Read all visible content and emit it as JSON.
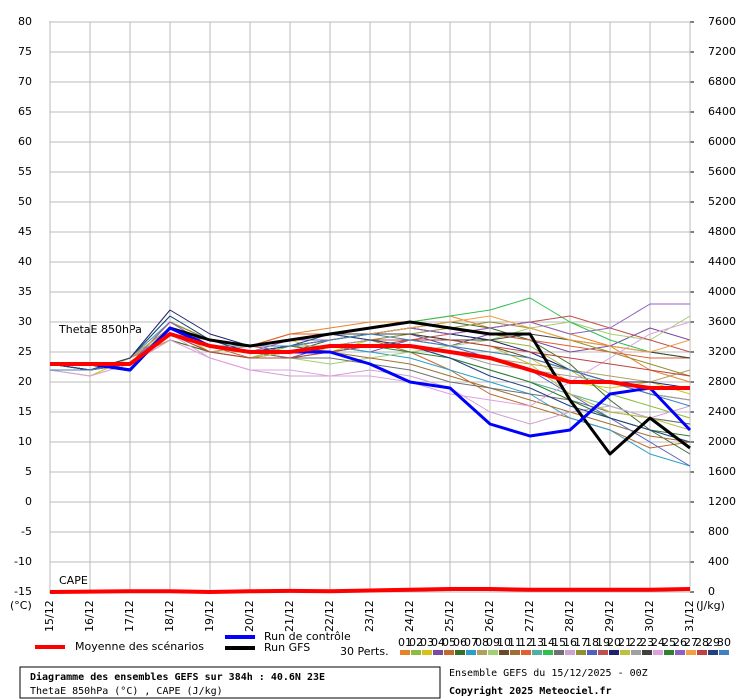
{
  "chart_data": {
    "type": "line",
    "categories": [
      "15/12",
      "16/12",
      "17/12",
      "18/12",
      "19/12",
      "20/12",
      "21/12",
      "22/12",
      "23/12",
      "24/12",
      "25/12",
      "26/12",
      "27/12",
      "28/12",
      "29/12",
      "30/12",
      "31/12"
    ],
    "ylim": [
      -15,
      80
    ],
    "yticks": [
      -15,
      -10,
      -5,
      0,
      5,
      10,
      15,
      20,
      25,
      30,
      35,
      40,
      45,
      50,
      55,
      60,
      65,
      70,
      75,
      80
    ],
    "y2lim": [
      0,
      7600
    ],
    "y2ticks": [
      0,
      400,
      800,
      1200,
      1600,
      2000,
      2400,
      2800,
      3200,
      3600,
      4000,
      4400,
      4800,
      5200,
      5600,
      6000,
      6400,
      6800,
      7200,
      7600
    ],
    "ylabel": "(°C)",
    "y2label": "(J/kg)",
    "annotations": [
      "ThetaE 850hPa",
      "CAPE"
    ],
    "grid": true,
    "perturbations_label": "30 Perts.",
    "series": [
      {
        "name": "01",
        "color": "#e8822a",
        "values": [
          23,
          22,
          24,
          27,
          25,
          26,
          28,
          29,
          30,
          30,
          31,
          29,
          30,
          28,
          26,
          22,
          20
        ]
      },
      {
        "name": "02",
        "color": "#8fbc3c",
        "values": [
          23,
          22,
          23,
          29,
          25,
          24,
          26,
          27,
          28,
          29,
          28,
          27,
          26,
          22,
          18,
          16,
          14
        ]
      },
      {
        "name": "03",
        "color": "#d4c21a",
        "values": [
          22,
          21,
          24,
          30,
          27,
          26,
          27,
          25,
          27,
          28,
          26,
          25,
          24,
          20,
          19,
          20,
          18
        ]
      },
      {
        "name": "04",
        "color": "#7a4aa0",
        "values": [
          23,
          22,
          23,
          28,
          26,
          25,
          24,
          26,
          25,
          27,
          26,
          28,
          27,
          25,
          26,
          29,
          27
        ]
      },
      {
        "name": "05",
        "color": "#c26a2e",
        "values": [
          22,
          22,
          24,
          29,
          26,
          24,
          25,
          26,
          27,
          25,
          22,
          18,
          16,
          14,
          12,
          9,
          10
        ]
      },
      {
        "name": "06",
        "color": "#3a6e2a",
        "values": [
          23,
          22,
          23,
          27,
          25,
          24,
          25,
          27,
          28,
          29,
          30,
          29,
          27,
          23,
          17,
          12,
          8
        ]
      },
      {
        "name": "07",
        "color": "#2aa0c8",
        "values": [
          22,
          22,
          24,
          30,
          26,
          25,
          26,
          26,
          25,
          24,
          22,
          20,
          18,
          14,
          12,
          8,
          6
        ]
      },
      {
        "name": "08",
        "color": "#b0a060",
        "values": [
          23,
          22,
          23,
          28,
          25,
          26,
          27,
          28,
          27,
          26,
          25,
          24,
          23,
          22,
          21,
          20,
          22
        ]
      },
      {
        "name": "09",
        "color": "#a0d070",
        "values": [
          22,
          21,
          23,
          29,
          26,
          25,
          24,
          23,
          24,
          25,
          26,
          27,
          29,
          30,
          28,
          27,
          31
        ]
      },
      {
        "name": "10",
        "color": "#6a4a2a",
        "values": [
          23,
          22,
          24,
          28,
          27,
          26,
          27,
          27,
          28,
          28,
          27,
          26,
          24,
          22,
          20,
          18,
          17
        ]
      },
      {
        "name": "11",
        "color": "#a07030",
        "values": [
          23,
          22,
          23,
          30,
          27,
          25,
          26,
          25,
          24,
          23,
          21,
          19,
          17,
          15,
          13,
          11,
          10
        ]
      },
      {
        "name": "12",
        "color": "#e06030",
        "values": [
          22,
          22,
          24,
          29,
          26,
          26,
          28,
          28,
          29,
          30,
          29,
          28,
          27,
          26,
          25,
          24,
          24
        ]
      },
      {
        "name": "13",
        "color": "#50b0a0",
        "values": [
          23,
          22,
          23,
          28,
          25,
          24,
          24,
          25,
          26,
          26,
          24,
          22,
          20,
          18,
          16,
          14,
          13
        ]
      },
      {
        "name": "14",
        "color": "#30c050",
        "values": [
          23,
          22,
          24,
          31,
          27,
          26,
          27,
          28,
          29,
          30,
          31,
          32,
          34,
          30,
          27,
          25,
          24
        ]
      },
      {
        "name": "15",
        "color": "#707070",
        "values": [
          22,
          22,
          23,
          29,
          26,
          25,
          24,
          24,
          23,
          22,
          20,
          19,
          18,
          17,
          15,
          14,
          13
        ]
      },
      {
        "name": "16",
        "color": "#d0a0d0",
        "values": [
          23,
          22,
          24,
          28,
          24,
          22,
          21,
          21,
          22,
          21,
          19,
          15,
          13,
          15,
          16,
          14,
          16
        ]
      },
      {
        "name": "17",
        "color": "#909030",
        "values": [
          23,
          22,
          23,
          30,
          27,
          26,
          27,
          28,
          27,
          28,
          29,
          30,
          29,
          27,
          25,
          23,
          21
        ]
      },
      {
        "name": "18",
        "color": "#5060c0",
        "values": [
          22,
          22,
          24,
          29,
          26,
          25,
          26,
          27,
          28,
          28,
          26,
          24,
          22,
          18,
          14,
          10,
          6
        ]
      },
      {
        "name": "19",
        "color": "#c05050",
        "values": [
          23,
          22,
          23,
          28,
          26,
          26,
          25,
          26,
          27,
          27,
          28,
          29,
          30,
          31,
          29,
          27,
          25
        ]
      },
      {
        "name": "20",
        "color": "#202070",
        "values": [
          23,
          22,
          24,
          32,
          28,
          26,
          26,
          27,
          28,
          29,
          28,
          27,
          25,
          22,
          20,
          20,
          19
        ]
      },
      {
        "name": "21",
        "color": "#c0c040",
        "values": [
          22,
          22,
          23,
          29,
          25,
          24,
          25,
          26,
          26,
          27,
          27,
          26,
          23,
          18,
          15,
          14,
          12
        ]
      },
      {
        "name": "22",
        "color": "#a0a0a0",
        "values": [
          23,
          22,
          24,
          28,
          26,
          25,
          26,
          26,
          27,
          26,
          25,
          23,
          22,
          21,
          20,
          18,
          17
        ]
      },
      {
        "name": "23",
        "color": "#404040",
        "values": [
          23,
          22,
          23,
          29,
          27,
          26,
          27,
          28,
          28,
          28,
          27,
          27,
          28,
          27,
          26,
          25,
          24
        ]
      },
      {
        "name": "24",
        "color": "#e0a0e0",
        "values": [
          22,
          21,
          23,
          27,
          24,
          22,
          22,
          21,
          21,
          20,
          18,
          17,
          16,
          20,
          24,
          28,
          30
        ]
      },
      {
        "name": "25",
        "color": "#308030",
        "values": [
          23,
          22,
          24,
          29,
          26,
          25,
          26,
          25,
          26,
          25,
          24,
          22,
          20,
          17,
          14,
          12,
          11
        ]
      },
      {
        "name": "26",
        "color": "#9060c0",
        "values": [
          23,
          22,
          23,
          30,
          26,
          25,
          27,
          27,
          28,
          29,
          28,
          29,
          30,
          28,
          29,
          33,
          33
        ]
      },
      {
        "name": "27",
        "color": "#f0a040",
        "values": [
          22,
          22,
          24,
          29,
          26,
          26,
          26,
          27,
          28,
          29,
          30,
          31,
          29,
          27,
          26,
          25,
          27
        ]
      },
      {
        "name": "28",
        "color": "#c04040",
        "values": [
          23,
          22,
          23,
          28,
          25,
          24,
          24,
          25,
          26,
          27,
          27,
          26,
          25,
          24,
          23,
          22,
          21
        ]
      },
      {
        "name": "29",
        "color": "#204080",
        "values": [
          23,
          22,
          24,
          31,
          27,
          25,
          26,
          28,
          27,
          26,
          24,
          21,
          19,
          16,
          14,
          12,
          10
        ]
      },
      {
        "name": "30",
        "color": "#4080c0",
        "values": [
          22,
          22,
          23,
          29,
          26,
          26,
          26,
          27,
          28,
          27,
          26,
          25,
          24,
          22,
          20,
          18,
          16
        ]
      },
      {
        "name": "Run GFS",
        "color": "#000000",
        "values": [
          23,
          23,
          22,
          29,
          27,
          26,
          27,
          28,
          29,
          30,
          29,
          28,
          28,
          17,
          8,
          14,
          9
        ]
      },
      {
        "name": "Run de contrôle",
        "color": "#0000ff",
        "values": [
          23,
          23,
          22,
          29,
          26,
          25,
          25,
          25,
          23,
          20,
          19,
          13,
          11,
          12,
          18,
          19,
          12
        ]
      },
      {
        "name": "Moyenne des scénarios",
        "color": "#ff0000",
        "values": [
          23,
          23,
          23,
          28,
          26,
          25,
          25,
          26,
          26,
          26,
          25,
          24,
          22,
          20,
          20,
          19,
          19
        ]
      }
    ],
    "cape": {
      "color": "#ff0000",
      "axis": "y2",
      "values": [
        0,
        5,
        10,
        10,
        0,
        10,
        15,
        10,
        20,
        30,
        40,
        40,
        30,
        30,
        30,
        30,
        40
      ]
    }
  },
  "info": {
    "title": "Diagramme des ensembles GEFS sur 384h : 40.6N 23E",
    "subtitle": "ThetaE 850hPa (°C) , CAPE (J/kg)",
    "run": "Ensemble GEFS du 15/12/2025 - 00Z",
    "copyright": "Copyright 2025 Meteociel.fr"
  }
}
